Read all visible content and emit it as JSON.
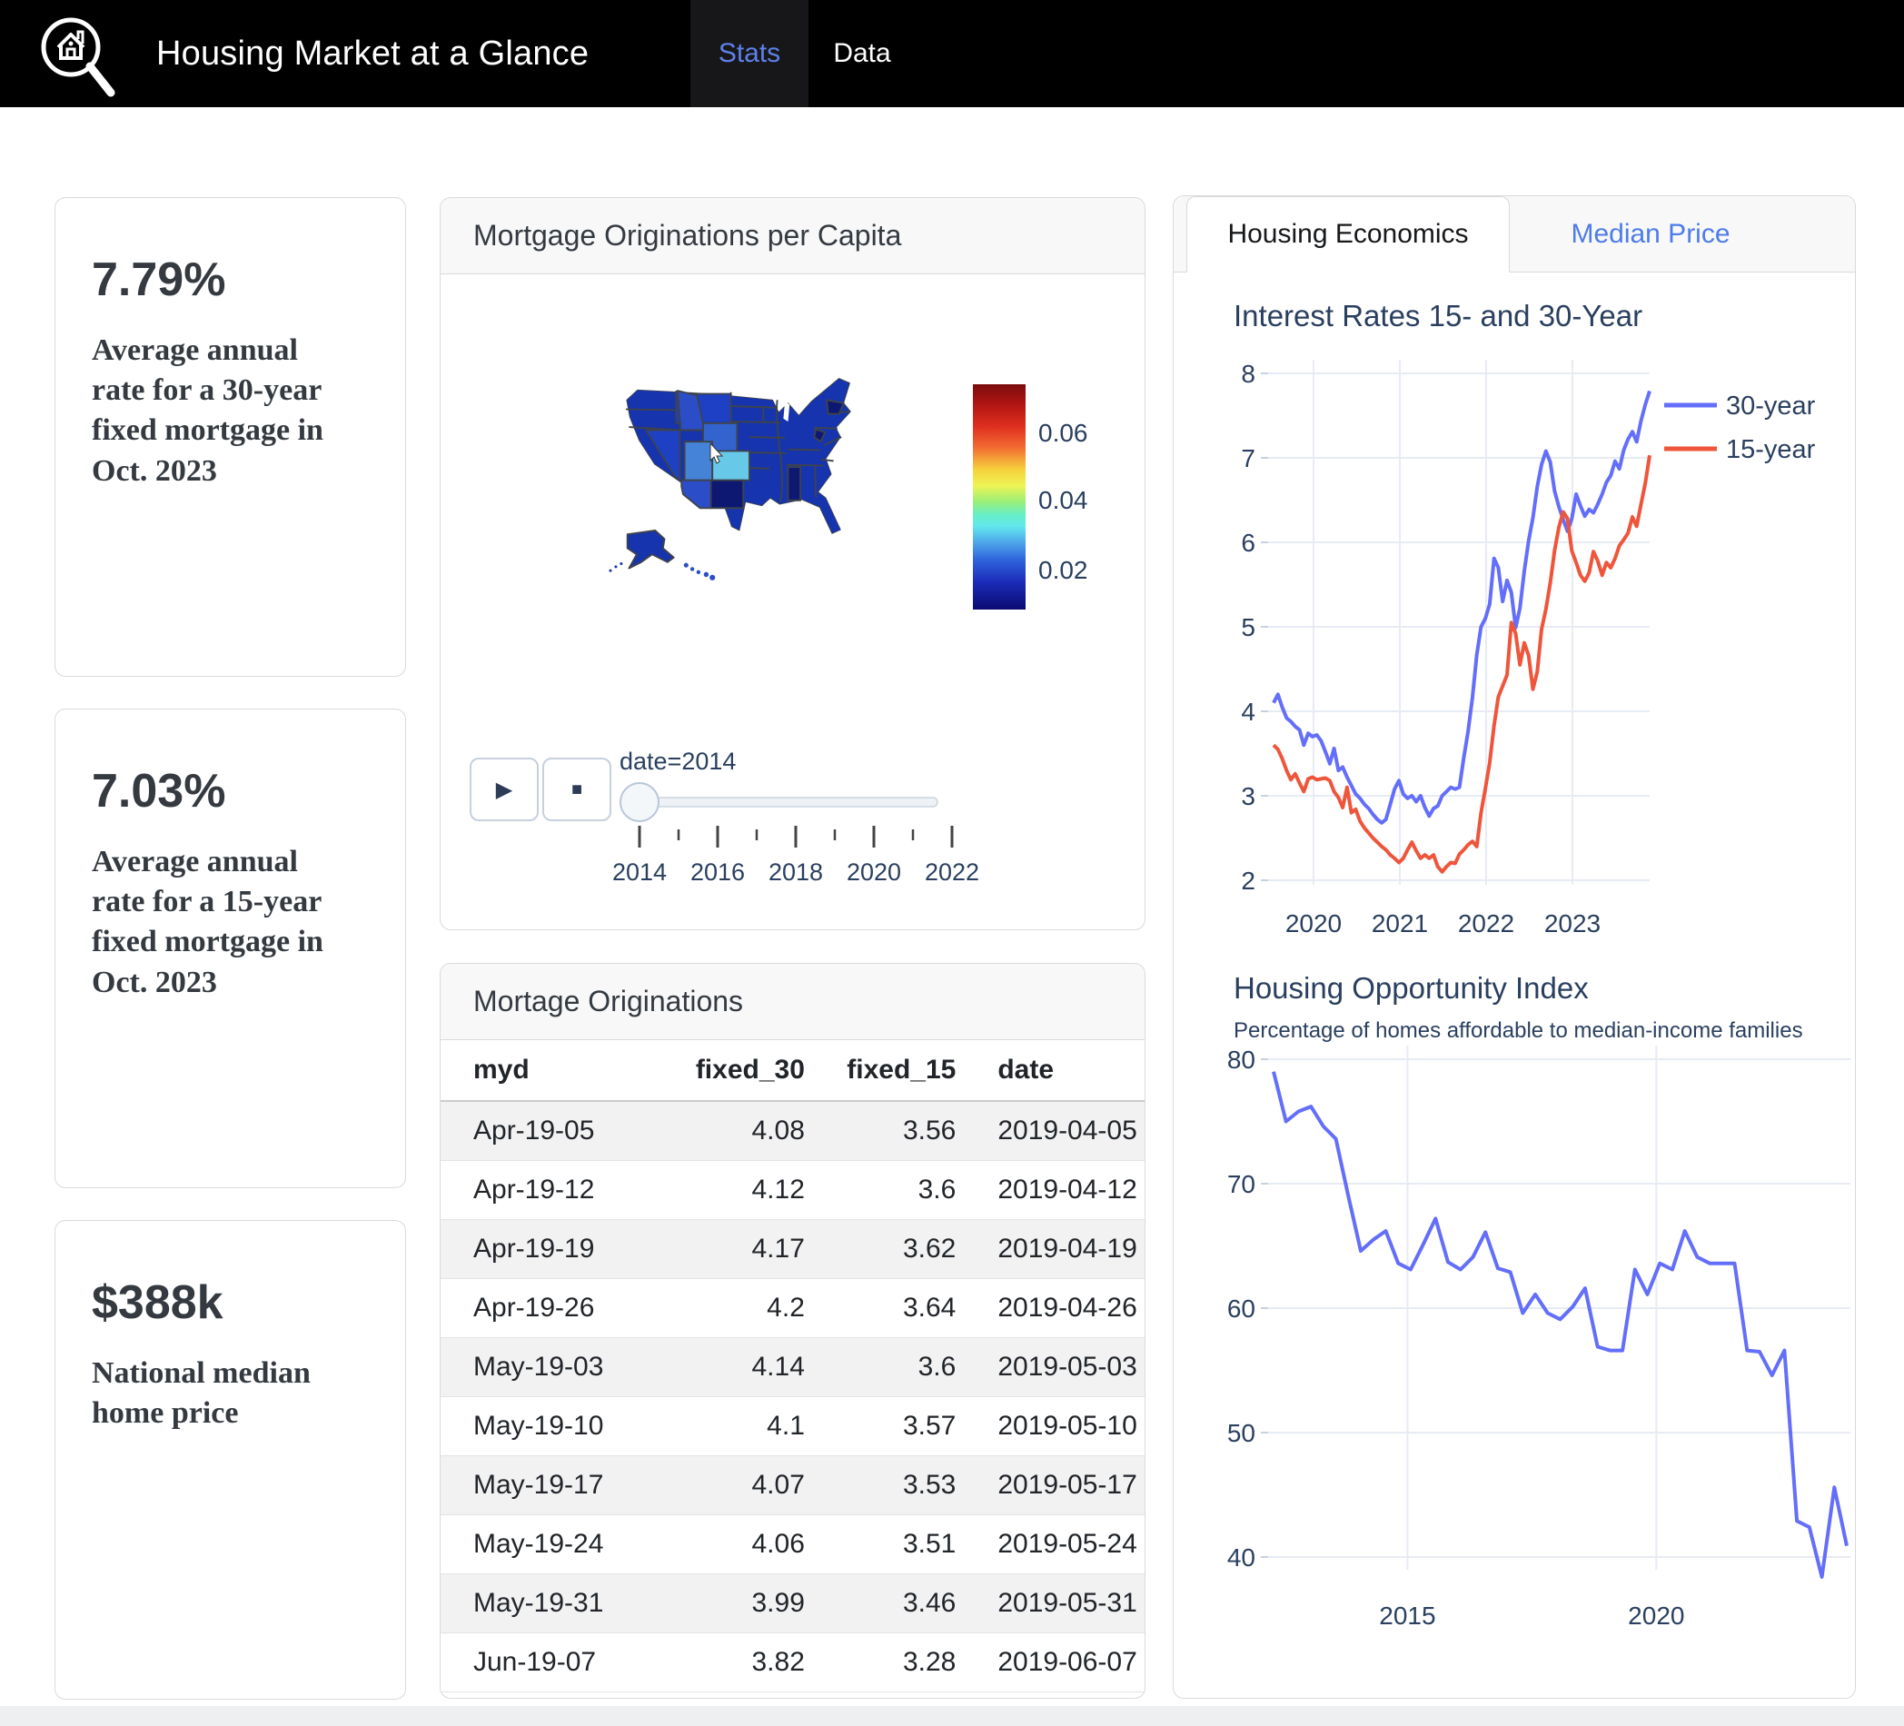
{
  "navbar": {
    "logo": "house-magnifier-icon",
    "title": "Housing Market at a Glance",
    "tabs": [
      {
        "label": "Stats",
        "active": true
      },
      {
        "label": "Data",
        "active": false
      }
    ]
  },
  "stat_cards": [
    {
      "value": "7.79%",
      "description": "Average annual rate for a 30-year fixed mortgage in Oct. 2023"
    },
    {
      "value": "7.03%",
      "description": "Average annual rate for a 15-year fixed mortgage in Oct. 2023"
    },
    {
      "value": "$388k",
      "description": "National median home price"
    }
  ],
  "map_card": {
    "title": "Mortgage Originations per Capita",
    "colorbar_ticks": [
      "0.06",
      "0.04",
      "0.02"
    ],
    "map_colors": {
      "base": "#1634ae",
      "light": "#2b4ec8",
      "lighter": "#1e40c4",
      "dark": "#0c1872",
      "wyoming": "#3263cf",
      "utah": "#4583d6",
      "colorado": "#68c8e8",
      "border": "#3f434a"
    },
    "slider": {
      "label": "date=2014",
      "play": "play",
      "stop": "stop",
      "years": [
        2014,
        2015,
        2016,
        2017,
        2018,
        2019,
        2020,
        2021,
        2022
      ],
      "tick_labels": [
        "2014",
        "2016",
        "2018",
        "2020",
        "2022"
      ]
    }
  },
  "table_card": {
    "title": "Mortage Originations",
    "columns": [
      "myd",
      "fixed_30",
      "fixed_15",
      "date"
    ],
    "rows": [
      [
        "Apr-19-05",
        "4.08",
        "3.56",
        "2019-04-05"
      ],
      [
        "Apr-19-12",
        "4.12",
        "3.6",
        "2019-04-12"
      ],
      [
        "Apr-19-19",
        "4.17",
        "3.62",
        "2019-04-19"
      ],
      [
        "Apr-19-26",
        "4.2",
        "3.64",
        "2019-04-26"
      ],
      [
        "May-19-03",
        "4.14",
        "3.6",
        "2019-05-03"
      ],
      [
        "May-19-10",
        "4.1",
        "3.57",
        "2019-05-10"
      ],
      [
        "May-19-17",
        "4.07",
        "3.53",
        "2019-05-17"
      ],
      [
        "May-19-24",
        "4.06",
        "3.51",
        "2019-05-24"
      ],
      [
        "May-19-31",
        "3.99",
        "3.46",
        "2019-05-31"
      ],
      [
        "Jun-19-07",
        "3.82",
        "3.28",
        "2019-06-07"
      ]
    ]
  },
  "right_panel": {
    "tabs": [
      {
        "label": "Housing Economics",
        "active": true
      },
      {
        "label": "Median Price",
        "active": false
      }
    ]
  },
  "chart_data": [
    {
      "type": "choropleth",
      "title": "Mortgage Originations per Capita",
      "colorscale": "jet",
      "frame_label": "date=2014",
      "colorbar_ticks": [
        0.06,
        0.04,
        0.02
      ],
      "highlights": {
        "Colorado": 0.045,
        "Utah": 0.033,
        "Wyoming": 0.03,
        "most_states": 0.02
      }
    },
    {
      "type": "line",
      "title": "Interest Rates 15- and 30-Year",
      "x_range": [
        2019.78,
        2023.82
      ],
      "x_ticks": [
        2020,
        2021,
        2022,
        2023
      ],
      "y_ticks": [
        2,
        3,
        4,
        5,
        6,
        7,
        8
      ],
      "grid": true,
      "legend_position": "top-right",
      "series": [
        {
          "name": "30-year",
          "color": "#636EFA",
          "values": [
            4.1,
            4.2,
            4.05,
            3.92,
            3.88,
            3.82,
            3.78,
            3.6,
            3.74,
            3.7,
            3.72,
            3.65,
            3.52,
            3.38,
            3.56,
            3.3,
            3.34,
            3.22,
            3.12,
            3.02,
            2.97,
            2.9,
            2.85,
            2.78,
            2.72,
            2.68,
            2.72,
            2.9,
            3.08,
            3.18,
            3.02,
            2.97,
            3.0,
            2.93,
            3.0,
            2.86,
            2.76,
            2.85,
            2.88,
            3.0,
            3.05,
            3.1,
            3.08,
            3.1,
            3.45,
            3.76,
            4.16,
            4.67,
            5.0,
            5.1,
            5.27,
            5.81,
            5.7,
            5.3,
            5.55,
            5.41,
            4.99,
            5.22,
            5.66,
            6.02,
            6.29,
            6.66,
            6.92,
            7.08,
            6.95,
            6.61,
            6.42,
            6.27,
            6.13,
            6.28,
            6.57,
            6.43,
            6.31,
            6.39,
            6.35,
            6.45,
            6.57,
            6.71,
            6.79,
            6.96,
            6.87,
            7.09,
            7.22,
            7.31,
            7.19,
            7.44,
            7.63,
            7.79
          ]
        },
        {
          "name": "15-year",
          "color": "#EF553B",
          "values": [
            3.6,
            3.55,
            3.44,
            3.3,
            3.19,
            3.26,
            3.15,
            3.05,
            3.2,
            3.22,
            3.19,
            3.2,
            3.21,
            3.18,
            3.05,
            2.98,
            2.86,
            3.1,
            2.8,
            2.84,
            2.7,
            2.62,
            2.56,
            2.5,
            2.45,
            2.4,
            2.36,
            2.3,
            2.26,
            2.21,
            2.26,
            2.36,
            2.45,
            2.35,
            2.26,
            2.3,
            2.26,
            2.3,
            2.16,
            2.1,
            2.16,
            2.21,
            2.2,
            2.31,
            2.36,
            2.42,
            2.46,
            2.4,
            2.8,
            3.09,
            3.39,
            3.83,
            4.17,
            4.3,
            4.43,
            5.05,
            4.92,
            4.55,
            4.81,
            4.66,
            4.26,
            4.47,
            4.97,
            5.21,
            5.52,
            5.9,
            6.18,
            6.36,
            6.28,
            5.9,
            5.76,
            5.61,
            5.54,
            5.64,
            5.89,
            5.78,
            5.61,
            5.76,
            5.7,
            5.81,
            5.96,
            6.03,
            6.11,
            6.3,
            6.19,
            6.45,
            6.7,
            7.03
          ]
        }
      ]
    },
    {
      "type": "line",
      "title": "Housing Opportunity Index",
      "subtitle": "Percentage of homes affordable to median-income families",
      "x_range": [
        2012.3,
        2023.8
      ],
      "x_ticks": [
        2015,
        2020
      ],
      "y_ticks": [
        40,
        50,
        60,
        70,
        80
      ],
      "grid": true,
      "series": [
        {
          "name": "Housing Opportunity Index",
          "color": "#636EFA",
          "values": [
            79,
            75,
            75.8,
            76.2,
            74.6,
            73.6,
            69,
            64.6,
            65.5,
            66.2,
            63.6,
            63.1,
            65.1,
            67.2,
            63.7,
            63.1,
            64.1,
            66.1,
            63.2,
            62.9,
            59.6,
            61.1,
            59.6,
            59.1,
            60.1,
            61.6,
            56.9,
            56.6,
            56.6,
            63.1,
            61.1,
            63.6,
            63.1,
            66.2,
            64.1,
            63.6,
            63.6,
            63.6,
            56.6,
            56.5,
            54.6,
            56.6,
            42.9,
            42.4,
            38.4,
            45.6,
            40.9
          ]
        }
      ]
    }
  ]
}
